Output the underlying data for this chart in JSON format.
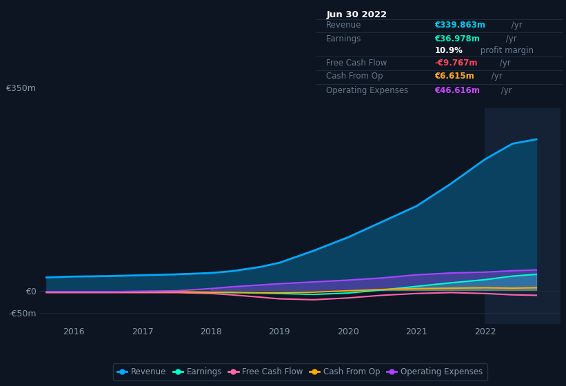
{
  "bg_color": "#0d1523",
  "plot_bg_color": "#0d1523",
  "highlight_bg": "#152236",
  "grid_color": "#1a2d45",
  "text_color": "#8899aa",
  "label_dim": "#667788",
  "title_text": "Jun 30 2022",
  "table_rows": [
    {
      "label": "Revenue",
      "value": "€339.863m",
      "suffix": " /yr",
      "val_color": "#00ccee",
      "sub": null
    },
    {
      "label": "Earnings",
      "value": "€36.978m",
      "suffix": " /yr",
      "val_color": "#00eebb",
      "sub": "10.9% profit margin"
    },
    {
      "label": "Free Cash Flow",
      "value": "-€9.767m",
      "suffix": " /yr",
      "val_color": "#ff4455",
      "sub": null
    },
    {
      "label": "Cash From Op",
      "value": "€6.615m",
      "suffix": " /yr",
      "val_color": "#ffaa22",
      "sub": null
    },
    {
      "label": "Operating Expenses",
      "value": "€46.616m",
      "suffix": " /yr",
      "val_color": "#cc44ff",
      "sub": null
    }
  ],
  "years": [
    2015.6,
    2016.0,
    2016.5,
    2017.0,
    2017.5,
    2018.0,
    2018.3,
    2018.7,
    2019.0,
    2019.5,
    2020.0,
    2020.5,
    2021.0,
    2021.5,
    2022.0,
    2022.4,
    2022.75
  ],
  "revenue": [
    30,
    32,
    33,
    35,
    37,
    40,
    44,
    53,
    63,
    90,
    120,
    155,
    190,
    240,
    295,
    330,
    340
  ],
  "earnings": [
    -3,
    -3,
    -3,
    -3,
    -3,
    -4,
    -4,
    -5,
    -6,
    -8,
    -5,
    2,
    10,
    18,
    25,
    33,
    37
  ],
  "free_cash_flow": [
    -4,
    -4,
    -4,
    -4,
    -4,
    -6,
    -9,
    -14,
    -18,
    -20,
    -16,
    -10,
    -6,
    -4,
    -6,
    -9,
    -10
  ],
  "cash_from_op": [
    -2,
    -2,
    -2,
    -2,
    -2,
    -3,
    -3,
    -4,
    -4,
    -3,
    0,
    3,
    5,
    6,
    7,
    6,
    7
  ],
  "op_expenses": [
    -2,
    -2,
    -2,
    -1,
    0,
    5,
    9,
    13,
    16,
    20,
    24,
    29,
    36,
    40,
    42,
    45,
    47
  ],
  "revenue_color": "#00aaff",
  "earnings_color": "#00ffcc",
  "fcf_color": "#ff66aa",
  "cashop_color": "#ffaa00",
  "opex_color": "#aa44ff",
  "revenue_fill": "#0a4060",
  "xtick_labels": [
    "2016",
    "2017",
    "2018",
    "2019",
    "2020",
    "2021",
    "2022"
  ],
  "xtick_positions": [
    2016,
    2017,
    2018,
    2019,
    2020,
    2021,
    2022
  ],
  "ylim": [
    -75,
    410
  ],
  "xlim": [
    2015.5,
    2023.1
  ],
  "highlight_start": 2022.0,
  "highlight_end": 2023.2,
  "y_label_350": "€350m",
  "y_label_0": "€0",
  "y_label_n50": "-€50m",
  "legend_items": [
    {
      "label": "Revenue",
      "color": "#00aaff"
    },
    {
      "label": "Earnings",
      "color": "#00ffcc"
    },
    {
      "label": "Free Cash Flow",
      "color": "#ff66aa"
    },
    {
      "label": "Cash From Op",
      "color": "#ffaa00"
    },
    {
      "label": "Operating Expenses",
      "color": "#aa44ff"
    }
  ]
}
